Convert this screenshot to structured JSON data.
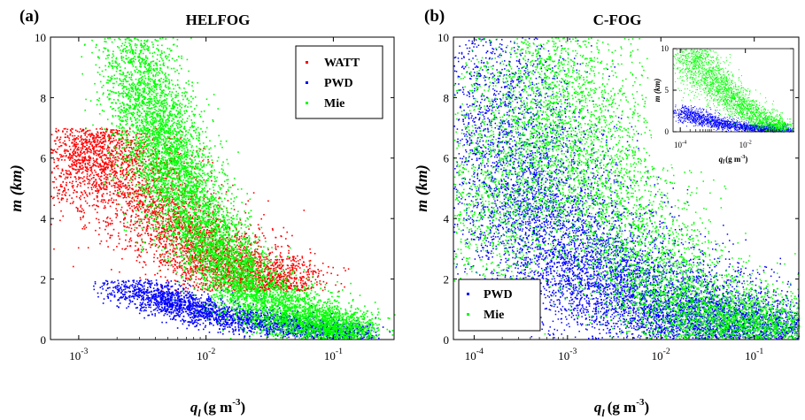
{
  "chart_data": [
    {
      "type": "scatter",
      "panel_label": "(a)",
      "title": "HELFOG",
      "xlabel": "q",
      "xlabel_sub": "l",
      "xlabel_unit": "(g m",
      "xlabel_exp": "-3",
      "xlabel_close": ")",
      "ylabel": "m (km)",
      "xscale": "log",
      "xlim": [
        0.0006,
        0.3
      ],
      "ylim": [
        0,
        10
      ],
      "xticks": [
        {
          "base": "10",
          "exp": "-3",
          "value": 0.001
        },
        {
          "base": "10",
          "exp": "-2",
          "value": 0.01
        },
        {
          "base": "10",
          "exp": "-1",
          "value": 0.1
        }
      ],
      "yticks": [
        "0",
        "2",
        "4",
        "6",
        "8",
        "10"
      ],
      "legend_position": "top-right",
      "series": [
        {
          "name": "WATT",
          "color": "#ff0000",
          "points": [
            [
              0.0007,
              6.8
            ],
            [
              0.001,
              6.5
            ],
            [
              0.0015,
              5.8
            ],
            [
              0.002,
              6.9
            ],
            [
              0.003,
              5.0
            ],
            [
              0.005,
              4.0
            ],
            [
              0.008,
              3.2
            ],
            [
              0.012,
              2.6
            ],
            [
              0.02,
              2.2
            ],
            [
              0.03,
              1.9
            ],
            [
              0.05,
              1.7
            ]
          ]
        },
        {
          "name": "PWD",
          "color": "#0000ff",
          "points": [
            [
              0.002,
              1.9
            ],
            [
              0.004,
              1.5
            ],
            [
              0.006,
              1.2
            ],
            [
              0.01,
              0.9
            ],
            [
              0.02,
              0.7
            ],
            [
              0.04,
              0.5
            ],
            [
              0.08,
              0.35
            ],
            [
              0.15,
              0.2
            ]
          ]
        },
        {
          "name": "Mie",
          "color": "#00ff00",
          "points": [
            [
              0.002,
              9.8
            ],
            [
              0.003,
              8.5
            ],
            [
              0.004,
              7.0
            ],
            [
              0.005,
              6.0
            ],
            [
              0.007,
              4.8
            ],
            [
              0.01,
              3.6
            ],
            [
              0.015,
              2.4
            ],
            [
              0.025,
              1.5
            ],
            [
              0.05,
              0.8
            ],
            [
              0.1,
              0.4
            ],
            [
              0.15,
              0.2
            ]
          ]
        }
      ]
    },
    {
      "type": "scatter",
      "panel_label": "(b)",
      "title": "C-FOG",
      "xlabel": "q",
      "xlabel_sub": "l",
      "xlabel_unit": "(g m",
      "xlabel_exp": "-3",
      "xlabel_close": ")",
      "ylabel": "m (km)",
      "xscale": "log",
      "xlim": [
        6e-05,
        0.3
      ],
      "ylim": [
        0,
        10
      ],
      "xticks": [
        {
          "base": "10",
          "exp": "-4",
          "value": 0.0001
        },
        {
          "base": "10",
          "exp": "-3",
          "value": 0.001
        },
        {
          "base": "10",
          "exp": "-2",
          "value": 0.01
        },
        {
          "base": "10",
          "exp": "-1",
          "value": 0.1
        }
      ],
      "yticks": [
        "0",
        "2",
        "4",
        "6",
        "8",
        "10"
      ],
      "legend_position": "bottom-left",
      "series": [
        {
          "name": "PWD",
          "color": "#0000ff",
          "points": [
            [
              0.0001,
              9.5
            ],
            [
              0.0002,
              7.0
            ],
            [
              0.0005,
              4.5
            ],
            [
              0.001,
              3.0
            ],
            [
              0.003,
              2.0
            ],
            [
              0.01,
              1.2
            ],
            [
              0.03,
              0.6
            ],
            [
              0.1,
              0.3
            ],
            [
              0.2,
              0.15
            ]
          ]
        },
        {
          "name": "Mie",
          "color": "#00ff00",
          "points": [
            [
              0.0001,
              3.0
            ],
            [
              0.0003,
              6.0
            ],
            [
              0.0006,
              9.5
            ],
            [
              0.001,
              7.5
            ],
            [
              0.003,
              4.5
            ],
            [
              0.01,
              2.0
            ],
            [
              0.03,
              0.8
            ],
            [
              0.1,
              0.4
            ],
            [
              0.2,
              0.2
            ]
          ]
        }
      ],
      "inset": {
        "xlim": [
          6e-05,
          0.3
        ],
        "ylim": [
          0,
          10
        ],
        "xticks": [
          {
            "base": "10",
            "exp": "-4",
            "value": 0.0001
          },
          {
            "base": "10",
            "exp": "-2",
            "value": 0.01
          }
        ],
        "yticks": [
          "0",
          "5",
          "10"
        ],
        "ylabel": "m (km)",
        "xlabel": "q",
        "xlabel_sub": "l",
        "xlabel_unit": "(g m",
        "xlabel_exp": "-3",
        "xlabel_close": ")"
      }
    }
  ]
}
